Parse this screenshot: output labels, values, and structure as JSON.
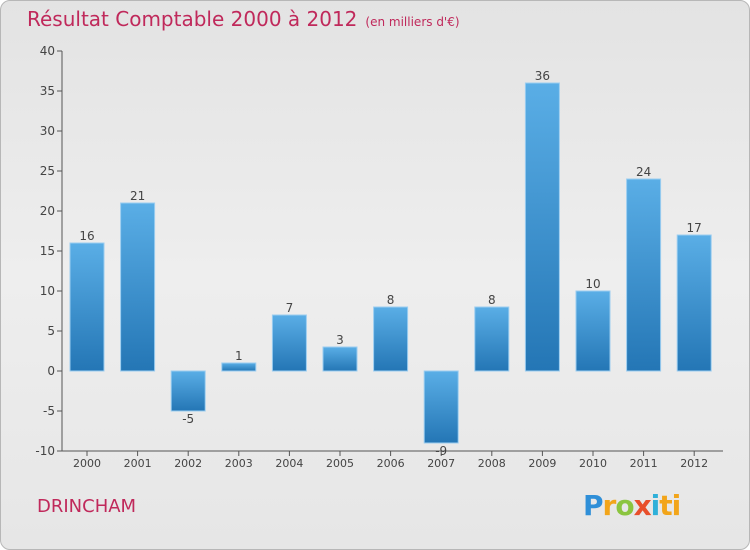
{
  "header": {
    "title": "Résultat Comptable 2000 à 2012",
    "subtitle": "(en milliers d'€)"
  },
  "footer": {
    "commune": "DRINCHAM",
    "logo_parts": [
      "P",
      "r",
      "o",
      "x",
      "i",
      "ti"
    ]
  },
  "colors": {
    "accent": "#c0295b",
    "bar_top": "#5aaee6",
    "bar_bottom": "#2476b5"
  },
  "chart_data": {
    "type": "bar",
    "title": "Résultat Comptable 2000 à 2012",
    "subtitle": "(en milliers d'€)",
    "xlabel": "",
    "ylabel": "",
    "categories": [
      "2000",
      "2001",
      "2002",
      "2003",
      "2004",
      "2005",
      "2006",
      "2007",
      "2008",
      "2009",
      "2010",
      "2011",
      "2012"
    ],
    "values": [
      16,
      21,
      -5,
      1,
      7,
      3,
      8,
      -9,
      8,
      36,
      10,
      24,
      17
    ],
    "ylim": [
      -10,
      40
    ],
    "yticks": [
      -10,
      -5,
      0,
      5,
      10,
      15,
      20,
      25,
      30,
      35,
      40
    ],
    "grid": false,
    "legend": "none"
  }
}
